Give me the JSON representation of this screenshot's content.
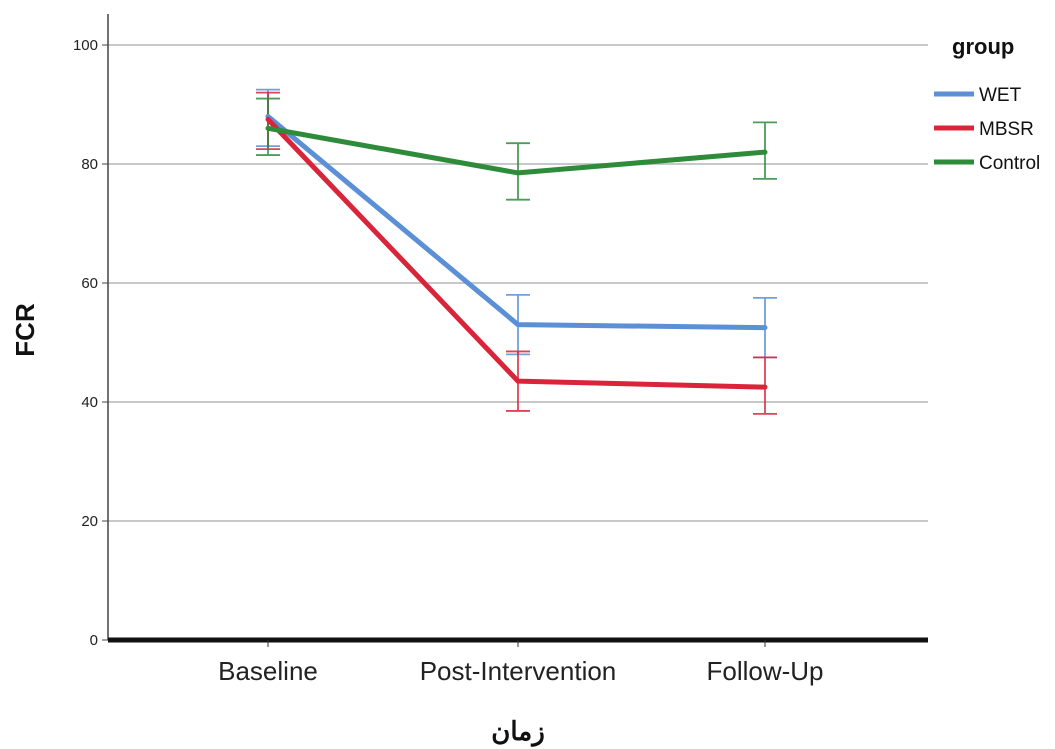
{
  "chart_data": {
    "type": "line",
    "title": "",
    "xlabel": "زمان",
    "ylabel": "FCR",
    "categories": [
      "Baseline",
      "Post-Intervention",
      "Follow-Up"
    ],
    "ylim": [
      0,
      100
    ],
    "yticks": [
      "0",
      "20",
      "40",
      "60",
      "80",
      "100"
    ],
    "grid": true,
    "error_bars": true,
    "legend": {
      "title": "group",
      "position": "top-right"
    },
    "series": [
      {
        "name": "WET",
        "color": "#5B8FD6",
        "values": [
          88,
          53,
          52.5
        ],
        "lower": [
          83,
          48,
          47.5
        ],
        "upper": [
          92.5,
          58,
          57.5
        ]
      },
      {
        "name": "MBSR",
        "color": "#D9243A",
        "values": [
          87.5,
          43.5,
          42.5
        ],
        "lower": [
          82.5,
          38.5,
          38
        ],
        "upper": [
          92,
          48.5,
          47.5
        ]
      },
      {
        "name": "Control",
        "color": "#2E8B3A",
        "values": [
          86,
          78.5,
          82
        ],
        "lower": [
          81.5,
          74,
          77.5
        ],
        "upper": [
          91,
          83.5,
          87
        ]
      }
    ]
  }
}
